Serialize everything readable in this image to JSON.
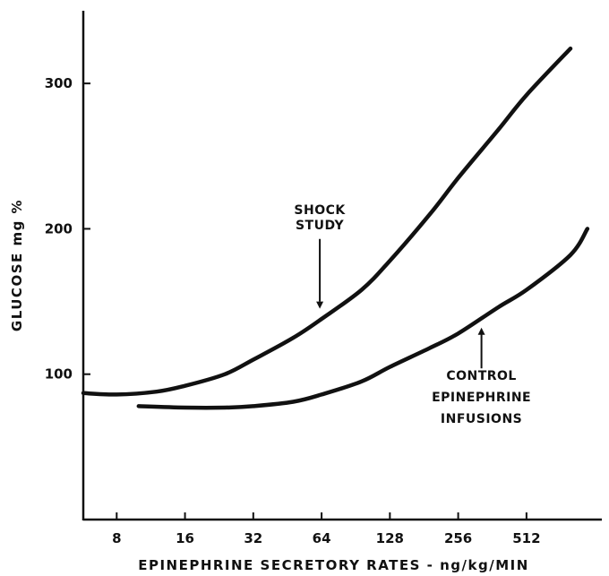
{
  "chart_data": {
    "type": "line",
    "title": "",
    "xlabel": "EPINEPHRINE SECRETORY RATES - ng/kg/MIN",
    "ylabel": "GLUCOSE mg %",
    "x_scale": "log2",
    "x_ticks": [
      8,
      16,
      32,
      64,
      128,
      256,
      512
    ],
    "x_tick_labels": [
      "8",
      "16",
      "32",
      "64",
      "128",
      "256",
      "512"
    ],
    "xlim": [
      5.7,
      1100
    ],
    "y_ticks": [
      100,
      200,
      300
    ],
    "y_tick_labels": [
      "100",
      "200",
      "300"
    ],
    "ylim": [
      0,
      350
    ],
    "grid": false,
    "series": [
      {
        "name": "SHOCK STUDY",
        "x": [
          5.7,
          8,
          12,
          16,
          24,
          32,
          48,
          64,
          96,
          128,
          192,
          256,
          384,
          512,
          800
        ],
        "y": [
          87,
          86,
          88,
          92,
          100,
          110,
          125,
          138,
          158,
          178,
          210,
          235,
          268,
          292,
          324
        ]
      },
      {
        "name": "CONTROL EPINEPHRINE INFUSIONS",
        "x": [
          10,
          16,
          24,
          32,
          48,
          64,
          96,
          128,
          192,
          256,
          384,
          512,
          800,
          950
        ],
        "y": [
          78,
          77,
          77,
          78,
          81,
          86,
          95,
          105,
          118,
          128,
          146,
          158,
          182,
          200
        ]
      }
    ],
    "annotations": [
      {
        "lines": [
          "SHOCK",
          "STUDY"
        ],
        "target_series": "SHOCK STUDY"
      },
      {
        "lines": [
          "CONTROL",
          "EPINEPHRINE",
          "INFUSIONS"
        ],
        "target_series": "CONTROL EPINEPHRINE INFUSIONS"
      }
    ]
  }
}
